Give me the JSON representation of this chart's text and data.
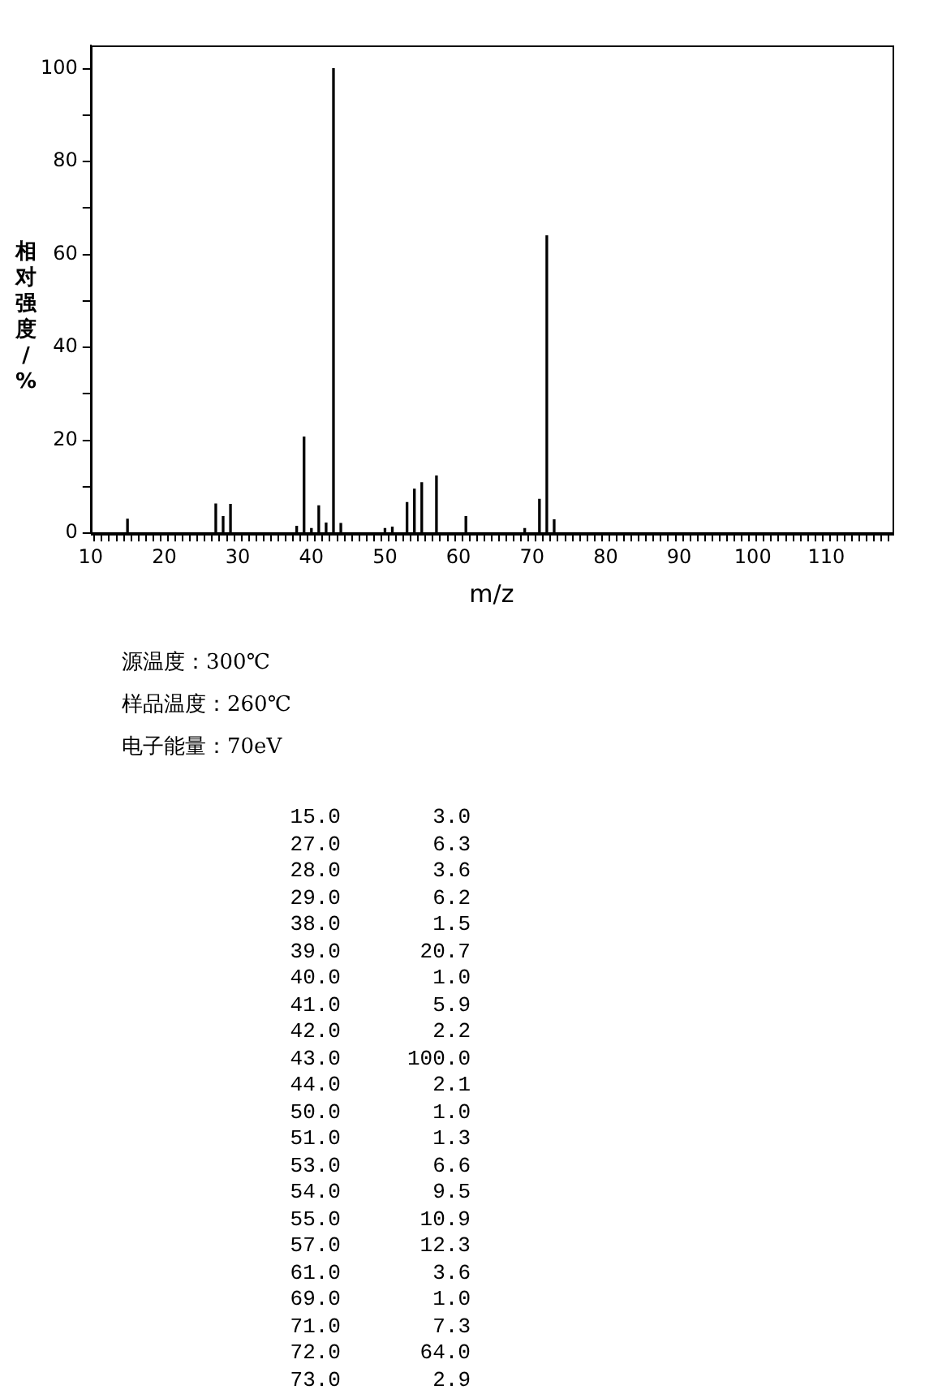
{
  "chart_data": [
    {
      "type": "bar",
      "xlabel": "m/z",
      "ylabel": "相对强度/%",
      "x": [
        15,
        27,
        28,
        29,
        38,
        39,
        40,
        41,
        42,
        43,
        44,
        50,
        51,
        53,
        54,
        55,
        57,
        61,
        69,
        71,
        72,
        73
      ],
      "values": [
        3.0,
        6.3,
        3.6,
        6.2,
        1.5,
        20.7,
        1.0,
        5.9,
        2.2,
        100.0,
        2.1,
        1.0,
        1.3,
        6.6,
        9.5,
        10.9,
        12.3,
        3.6,
        1.0,
        7.3,
        64.0,
        2.9
      ],
      "color": "#000000",
      "xlim": [
        10,
        119
      ],
      "xticks": [
        10,
        {
          "value": 11,
          "label": null
        },
        {
          "value": 12,
          "label": null
        },
        {
          "value": 13,
          "label": null
        },
        {
          "value": 14,
          "label": null
        },
        {
          "value": 15,
          "label": null
        },
        {
          "value": 16,
          "label": null
        },
        {
          "value": 17,
          "label": null
        },
        {
          "value": 18,
          "label": null
        },
        {
          "value": 19,
          "label": null
        },
        20,
        {
          "value": 21,
          "label": null
        },
        {
          "value": 22,
          "label": null
        },
        {
          "value": 23,
          "label": null
        },
        {
          "value": 24,
          "label": null
        },
        {
          "value": 25,
          "label": null
        },
        {
          "value": 26,
          "label": null
        },
        {
          "value": 27,
          "label": null
        },
        {
          "value": 28,
          "label": null
        },
        {
          "value": 29,
          "label": null
        },
        30,
        {
          "value": 31,
          "label": null
        },
        {
          "value": 32,
          "label": null
        },
        {
          "value": 33,
          "label": null
        },
        {
          "value": 34,
          "label": null
        },
        {
          "value": 35,
          "label": null
        },
        {
          "value": 36,
          "label": null
        },
        {
          "value": 37,
          "label": null
        },
        {
          "value": 38,
          "label": null
        },
        {
          "value": 39,
          "label": null
        },
        40,
        {
          "value": 41,
          "label": null
        },
        {
          "value": 42,
          "label": null
        },
        {
          "value": 43,
          "label": null
        },
        {
          "value": 44,
          "label": null
        },
        {
          "value": 45,
          "label": null
        },
        {
          "value": 46,
          "label": null
        },
        {
          "value": 47,
          "label": null
        },
        {
          "value": 48,
          "label": null
        },
        {
          "value": 49,
          "label": null
        },
        50,
        {
          "value": 51,
          "label": null
        },
        {
          "value": 52,
          "label": null
        },
        {
          "value": 53,
          "label": null
        },
        {
          "value": 54,
          "label": null
        },
        {
          "value": 55,
          "label": null
        },
        {
          "value": 56,
          "label": null
        },
        {
          "value": 57,
          "label": null
        },
        {
          "value": 58,
          "label": null
        },
        {
          "value": 59,
          "label": null
        },
        60,
        {
          "value": 61,
          "label": null
        },
        {
          "value": 62,
          "label": null
        },
        {
          "value": 63,
          "label": null
        },
        {
          "value": 64,
          "label": null
        },
        {
          "value": 65,
          "label": null
        },
        {
          "value": 66,
          "label": null
        },
        {
          "value": 67,
          "label": null
        },
        {
          "value": 68,
          "label": null
        },
        {
          "value": 69,
          "label": null
        },
        70,
        {
          "value": 71,
          "label": null
        },
        {
          "value": 72,
          "label": null
        },
        {
          "value": 73,
          "label": null
        },
        {
          "value": 74,
          "label": null
        },
        {
          "value": 75,
          "label": null
        },
        {
          "value": 76,
          "label": null
        },
        {
          "value": 77,
          "label": null
        },
        {
          "value": 78,
          "label": null
        },
        {
          "value": 79,
          "label": null
        },
        80,
        {
          "value": 81,
          "label": null
        },
        {
          "value": 82,
          "label": null
        },
        {
          "value": 83,
          "label": null
        },
        {
          "value": 84,
          "label": null
        },
        {
          "value": 85,
          "label": null
        },
        {
          "value": 86,
          "label": null
        },
        {
          "value": 87,
          "label": null
        },
        {
          "value": 88,
          "label": null
        },
        {
          "value": 89,
          "label": null
        },
        90,
        {
          "value": 91,
          "label": null
        },
        {
          "value": 92,
          "label": null
        },
        {
          "value": 93,
          "label": null
        },
        {
          "value": 94,
          "label": null
        },
        {
          "value": 95,
          "label": null
        },
        {
          "value": 96,
          "label": null
        },
        {
          "value": 97,
          "label": null
        },
        {
          "value": 98,
          "label": null
        },
        {
          "value": 99,
          "label": null
        },
        100,
        {
          "value": 101,
          "label": null
        },
        {
          "value": 102,
          "label": null
        },
        {
          "value": 103,
          "label": null
        },
        {
          "value": 104,
          "label": null
        },
        {
          "value": 105,
          "label": null
        },
        {
          "value": 106,
          "label": null
        },
        {
          "value": 107,
          "label": null
        },
        {
          "value": 108,
          "label": null
        },
        {
          "value": 109,
          "label": null
        },
        110,
        {
          "value": 111,
          "label": null
        },
        {
          "value": 112,
          "label": null
        },
        {
          "value": 113,
          "label": null
        },
        {
          "value": 114,
          "label": null
        },
        {
          "value": 115,
          "label": null
        },
        {
          "value": 116,
          "label": null
        },
        {
          "value": 117,
          "label": null
        },
        {
          "value": 118,
          "label": null
        }
      ],
      "ylim": [
        0,
        105
      ],
      "yticks": [
        0,
        {
          "value": 10,
          "label": null
        },
        20,
        {
          "value": 30,
          "label": null
        },
        40,
        {
          "value": 50,
          "label": null
        },
        60,
        {
          "value": 70,
          "label": null
        },
        80,
        {
          "value": 90,
          "label": null
        },
        100
      ],
      "grid": false,
      "legend": false,
      "annotations": [
        "源温度：300℃",
        "样品温度：260℃",
        "电子能量：70eV"
      ]
    },
    {
      "type": "other",
      "categories": [
        "15.0",
        "27.0",
        "28.0",
        "29.0",
        "38.0",
        "39.0",
        "40.0",
        "41.0",
        "42.0",
        "43.0",
        "44.0",
        "50.0",
        "51.0",
        "53.0",
        "54.0",
        "55.0",
        "57.0",
        "61.0",
        "69.0",
        "71.0",
        "72.0",
        "73.0"
      ],
      "value_labels": [
        "3.0",
        "6.3",
        "3.6",
        "6.2",
        "1.5",
        "20.7",
        "1.0",
        "5.9",
        "2.2",
        "100.0",
        "2.1",
        "1.0",
        "1.3",
        "6.6",
        "9.5",
        "10.9",
        "12.3",
        "3.6",
        "1.0",
        "7.3",
        "64.0",
        "2.9"
      ]
    }
  ]
}
